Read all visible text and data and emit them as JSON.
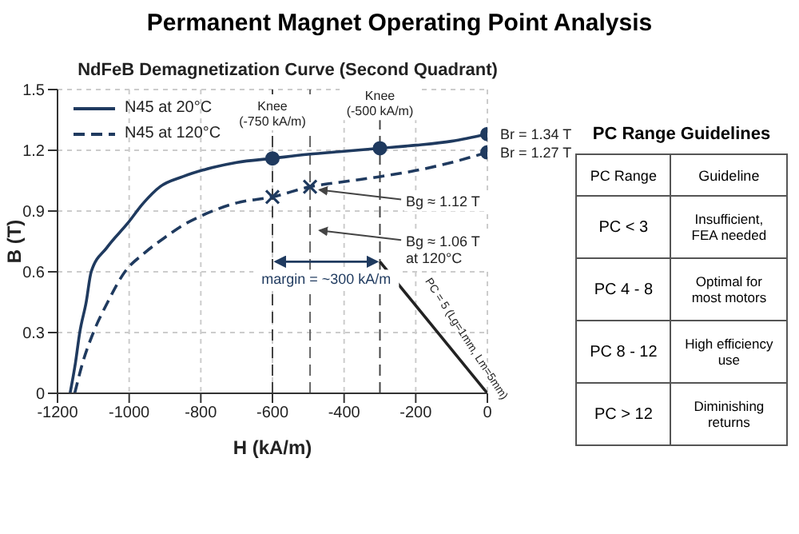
{
  "chart_data": [
    {
      "type": "line",
      "title": "Permanent Magnet Operating Point Analysis",
      "subtitle": "NdFeB Demagnetization Curve (Second Quadrant)",
      "xlabel": "H (kA/m)",
      "ylabel": "B (T)",
      "xlim": [
        -1200,
        0
      ],
      "xticks": [
        -1200,
        -1000,
        -800,
        -600,
        -400,
        -200,
        0
      ],
      "ylim": [
        0,
        1.5
      ],
      "yticks": [
        0,
        0.3,
        0.6,
        0.9,
        1.2,
        1.5
      ],
      "grid": true,
      "legend": "top left",
      "series": [
        {
          "name": "N45 at 20°C",
          "color": "#1f3a5f",
          "line_style": "solid",
          "marker": "none",
          "x": [
            -1165,
            -1150,
            -1138,
            -1120,
            -1106,
            -1062,
            -1004,
            -960,
            -914,
            -850,
            -767,
            -700,
            -600,
            -500,
            -400,
            -300,
            -200,
            -100,
            0
          ],
          "values": [
            0,
            0.15,
            0.3,
            0.45,
            0.6,
            0.72,
            0.84,
            0.94,
            1.02,
            1.07,
            1.115,
            1.14,
            1.16,
            1.18,
            1.195,
            1.21,
            1.225,
            1.245,
            1.28
          ]
        },
        {
          "name": "N45 at 120°C",
          "color": "#1f3a5f",
          "line_style": "dashed",
          "marker": "none",
          "x": [
            -1152,
            -1130,
            -1100,
            -1060,
            -1012,
            -959,
            -900,
            -850,
            -794,
            -700,
            -600,
            -495,
            -400,
            -300,
            -200,
            -100,
            0
          ],
          "values": [
            0,
            0.15,
            0.3,
            0.45,
            0.6,
            0.69,
            0.77,
            0.83,
            0.88,
            0.94,
            0.97,
            1.02,
            1.045,
            1.07,
            1.1,
            1.14,
            1.19
          ]
        },
        {
          "type": "line",
          "color": "#222222",
          "line_style": "solid",
          "marker": "none",
          "x": [
            -300,
            0
          ],
          "values": [
            0.65,
            0
          ]
        },
        {
          "type": "scatter",
          "color": "#1f3a5f",
          "marker": "circle",
          "x": [
            -600,
            -300,
            0,
            0
          ],
          "values": [
            1.16,
            1.21,
            1.28,
            1.19
          ]
        },
        {
          "type": "scatter",
          "color": "#1f3a5f",
          "marker": "cross",
          "x": [
            -600,
            -495
          ],
          "values": [
            0.97,
            1.02
          ]
        }
      ],
      "ref_lines": [
        {
          "axis": "x",
          "value": -600,
          "color": "#444444",
          "line_style": "dashed"
        },
        {
          "axis": "x",
          "value": -495,
          "color": "#666666",
          "line_style": "dashed"
        },
        {
          "axis": "x",
          "value": -300,
          "color": "#444444",
          "line_style": "dashed"
        }
      ],
      "annotations": [
        {
          "text": "Knee\n(-750 kA/m)",
          "x": -600,
          "y": 1.16
        },
        {
          "text": "Knee\n(-500 kA/m)",
          "x": -300,
          "y": 1.21
        },
        {
          "text": "Br = 1.34 T",
          "x": 0,
          "y": 1.28
        },
        {
          "text": "Br = 1.27 T",
          "x": 0,
          "y": 1.19
        },
        {
          "text": "Bg ≈ 1.12 T",
          "x": -495,
          "y": 1.02
        },
        {
          "text": "Bg ≈ 1.06 T\nat 120°C",
          "x": -495,
          "y": 0.82
        },
        "margin = ~300 kA/m",
        {
          "text": "PC = 5 (Lg=1mm, Lm=5mm)",
          "x": -120,
          "y": 0.26
        }
      ]
    },
    {
      "type": "other",
      "title": "PC Range Guidelines",
      "annotations": [
        "PC Range",
        "Guideline",
        "PC < 3",
        "Insufficient,\nFEA needed",
        "PC 4 - 8",
        "Optimal for\nmost motors",
        "PC 8 - 12",
        "High efficiency\nuse",
        "PC > 12",
        "Diminishing\nreturns"
      ]
    }
  ]
}
